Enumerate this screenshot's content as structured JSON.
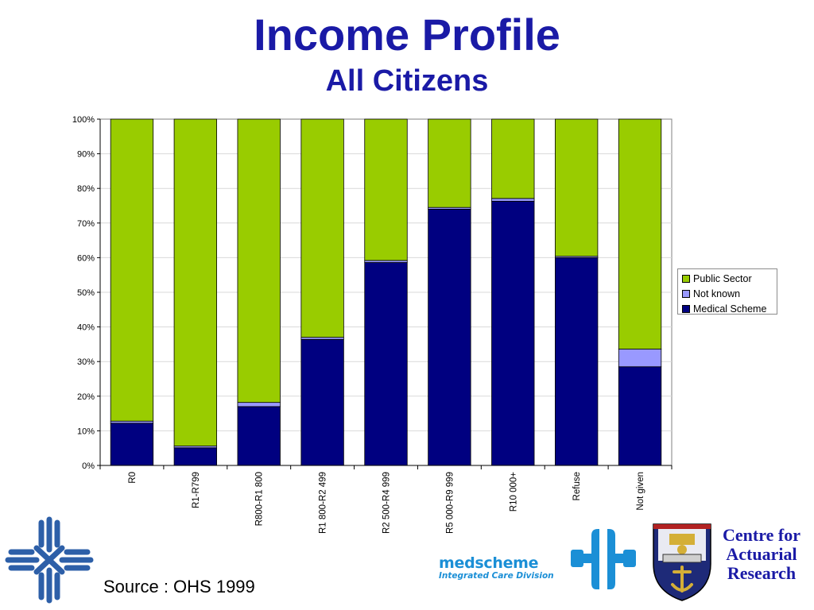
{
  "header": {
    "title": "Income Profile",
    "subtitle": "All Citizens"
  },
  "chart_data": {
    "type": "bar",
    "stacked": true,
    "percent_stacked": true,
    "title": "Income Profile",
    "subtitle": "All Citizens",
    "xlabel": "",
    "ylabel": "",
    "ylim": [
      0,
      100
    ],
    "y_ticks": [
      "0%",
      "10%",
      "20%",
      "30%",
      "40%",
      "50%",
      "60%",
      "70%",
      "80%",
      "90%",
      "100%"
    ],
    "grid": true,
    "legend_position": "right",
    "categories": [
      "R0",
      "R1-R799",
      "R800-R1 800",
      "R1 800-R2 499",
      "R2 500-R4 999",
      "R5 000-R9 999",
      "R10 000+",
      "Refuse",
      "Not given"
    ],
    "series": [
      {
        "name": "Medical Scheme",
        "color": "#000080",
        "values": [
          12.2,
          5.1,
          17.0,
          36.4,
          58.6,
          74.0,
          76.3,
          60.0,
          28.5
        ]
      },
      {
        "name": "Not known",
        "color": "#9999ff",
        "values": [
          0.6,
          0.5,
          1.2,
          0.6,
          0.6,
          0.5,
          0.8,
          0.4,
          5.1
        ]
      },
      {
        "name": "Public Sector",
        "color": "#99cc00",
        "values": [
          87.2,
          94.4,
          81.8,
          63.0,
          40.8,
          25.5,
          22.9,
          39.6,
          66.4
        ]
      }
    ]
  },
  "legend": {
    "items": [
      {
        "label": "Public Sector",
        "color": "#99cc00"
      },
      {
        "label": "Not known",
        "color": "#9999ff"
      },
      {
        "label": "Medical Scheme",
        "color": "#000080"
      }
    ]
  },
  "footer": {
    "source": "Source : OHS 1999",
    "medscheme_name": "medscheme",
    "medscheme_division": "Integrated Care Division",
    "car_line1": "Centre for",
    "car_line2": "Actuarial",
    "car_line3": "Research"
  },
  "icons": {
    "left_logo": "cross-network-logo-icon",
    "medscheme_logo": "medscheme-logo-icon",
    "health_logo": "mh-logo-icon",
    "crest": "university-crest-icon"
  }
}
